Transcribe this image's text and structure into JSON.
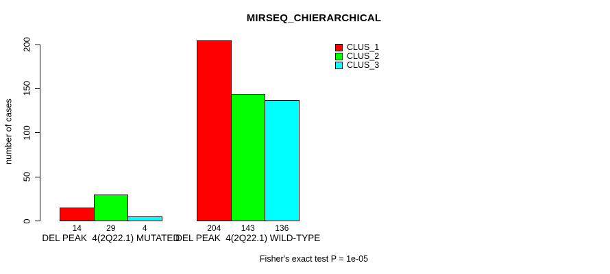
{
  "chart_data": {
    "type": "bar",
    "title": "MIRSEQ_CHIERARCHICAL",
    "ylabel": "number of cases",
    "xlabel": "",
    "categories": [
      "DEL PEAK  4(2Q22.1) MUTATED",
      "DEL PEAK  4(2Q22.1) WILD-TYPE"
    ],
    "series": [
      {
        "name": "CLUS_1",
        "color": "#ff0000",
        "values": [
          14,
          204
        ]
      },
      {
        "name": "CLUS_2",
        "color": "#00ff00",
        "values": [
          29,
          143
        ]
      },
      {
        "name": "CLUS_3",
        "color": "#00ffff",
        "values": [
          4,
          136
        ]
      }
    ],
    "bar_value_labels": [
      [
        "14",
        "29",
        "4"
      ],
      [
        "204",
        "143",
        "136"
      ]
    ],
    "yticks": [
      0,
      50,
      100,
      150,
      200
    ],
    "ylim": [
      0,
      200
    ],
    "grid": false,
    "legend_position": "top-right",
    "footnote": "Fisher's exact test P = 1e-05"
  },
  "colors": {
    "background": "#ffffff",
    "axis": "#000000",
    "text": "#000000",
    "bar_border": "#000000"
  }
}
